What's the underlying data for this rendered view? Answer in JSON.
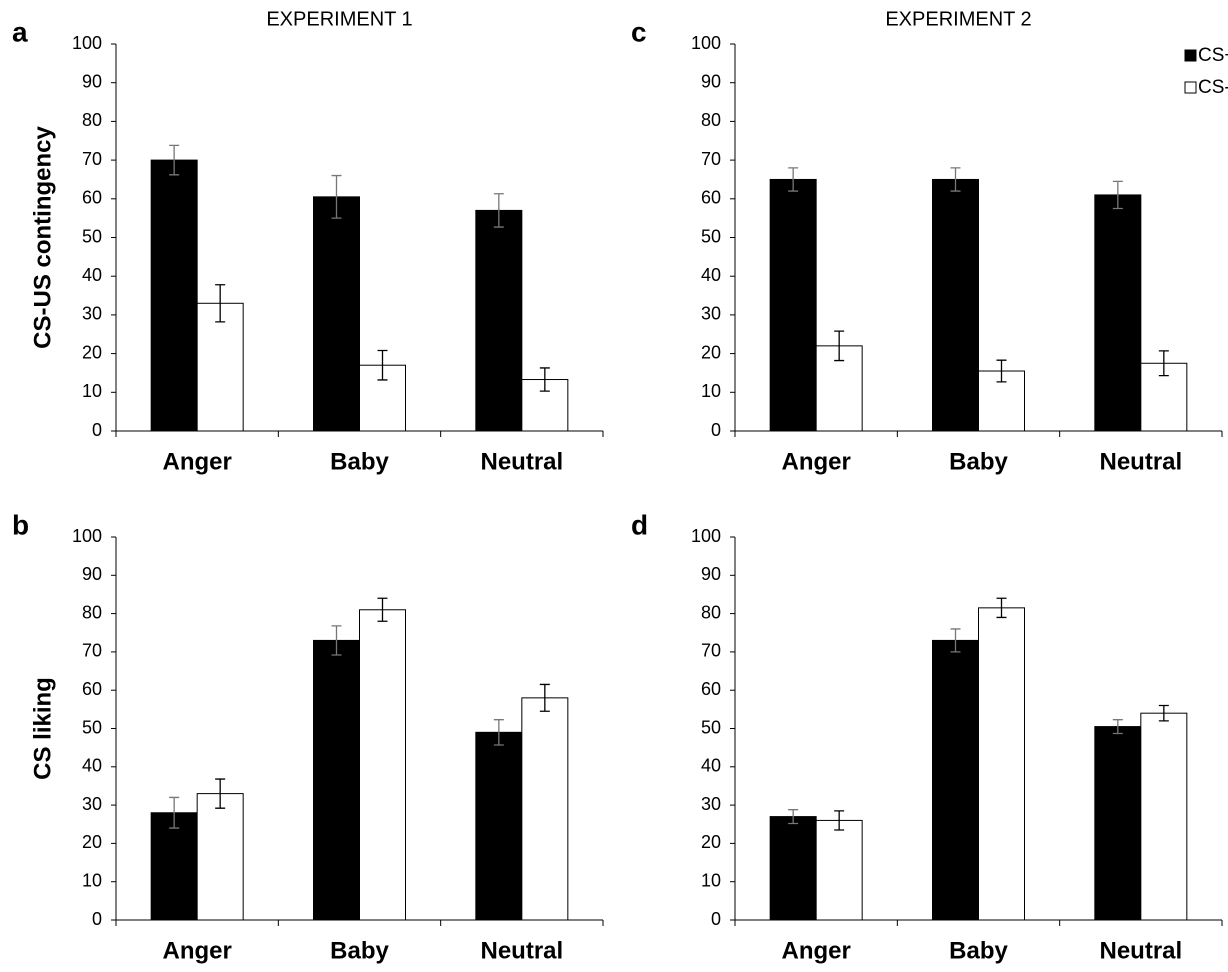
{
  "chart_data": [
    {
      "type": "bar",
      "panel": "a",
      "title": "EXPERIMENT 1",
      "ylabel": "CS-US contingency",
      "categories": [
        "Anger",
        "Baby",
        "Neutral"
      ],
      "series": [
        {
          "color": "#000000",
          "values": [
            70,
            60.5,
            57
          ],
          "errors": [
            3.8,
            5.5,
            4.3
          ]
        },
        {
          "color": "#ffffff",
          "values": [
            33,
            17,
            13.3
          ],
          "errors": [
            4.8,
            3.8,
            3
          ]
        }
      ],
      "ylim": [
        0,
        100
      ],
      "yticks": [
        0,
        10,
        20,
        30,
        40,
        50,
        60,
        70,
        80,
        90,
        100
      ]
    },
    {
      "type": "bar",
      "panel": "b",
      "ylabel": "CS liking",
      "categories": [
        "Anger",
        "Baby",
        "Neutral"
      ],
      "series": [
        {
          "color": "#000000",
          "values": [
            28,
            73,
            49
          ],
          "errors": [
            4,
            3.8,
            3.3
          ]
        },
        {
          "color": "#ffffff",
          "values": [
            33,
            81,
            58
          ],
          "errors": [
            3.8,
            3,
            3.5
          ]
        }
      ],
      "ylim": [
        0,
        100
      ],
      "yticks": [
        0,
        10,
        20,
        30,
        40,
        50,
        60,
        70,
        80,
        90,
        100
      ]
    },
    {
      "type": "bar",
      "panel": "c",
      "title": "EXPERIMENT 2",
      "categories": [
        "Anger",
        "Baby",
        "Neutral"
      ],
      "series": [
        {
          "name": "CS+",
          "color": "#000000",
          "values": [
            65,
            65,
            61
          ],
          "errors": [
            3,
            3,
            3.5
          ]
        },
        {
          "name": "CS-",
          "color": "#ffffff",
          "values": [
            22,
            15.5,
            17.5
          ],
          "errors": [
            3.8,
            2.8,
            3.2
          ]
        }
      ],
      "ylim": [
        0,
        100
      ],
      "yticks": [
        0,
        10,
        20,
        30,
        40,
        50,
        60,
        70,
        80,
        90,
        100
      ],
      "legend": "top-right"
    },
    {
      "type": "bar",
      "panel": "d",
      "categories": [
        "Anger",
        "Baby",
        "Neutral"
      ],
      "series": [
        {
          "color": "#000000",
          "values": [
            27,
            73,
            50.5
          ],
          "errors": [
            1.8,
            3,
            1.8
          ]
        },
        {
          "color": "#ffffff",
          "values": [
            26,
            81.5,
            54
          ],
          "errors": [
            2.5,
            2.5,
            2
          ]
        }
      ],
      "ylim": [
        0,
        100
      ],
      "yticks": [
        0,
        10,
        20,
        30,
        40,
        50,
        60,
        70,
        80,
        90,
        100
      ]
    }
  ]
}
